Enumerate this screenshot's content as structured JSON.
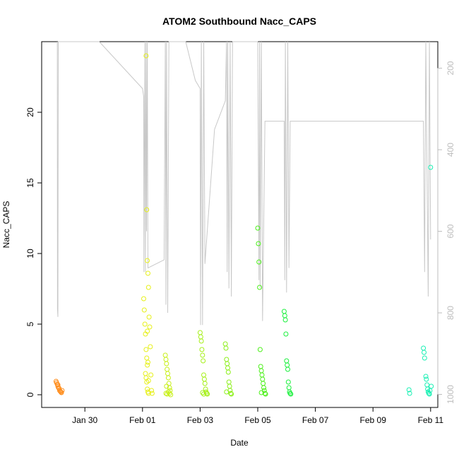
{
  "chart_data": {
    "type": "scatter",
    "title": "ATOM2 Southbound Nacc_CAPS",
    "xlabel": "Date",
    "ylabel": "Nacc_CAPS",
    "x_unit": "day of 2016",
    "xlim": [
      "Jan 28 12:00",
      "Feb 11 06:00"
    ],
    "ylim": [
      -0.9,
      25
    ],
    "y_ticks": [
      0,
      5,
      10,
      15,
      20
    ],
    "x_ticks": [
      {
        "date": "Jan 30",
        "label": "Jan 30"
      },
      {
        "date": "Feb 01",
        "label": "Feb 01"
      },
      {
        "date": "Feb 03",
        "label": "Feb 03"
      },
      {
        "date": "Feb 05",
        "label": "Feb 05"
      },
      {
        "date": "Feb 07",
        "label": "Feb 07"
      },
      {
        "date": "Feb 09",
        "label": "Feb 09"
      },
      {
        "date": "Feb 11",
        "label": "Feb 11"
      }
    ],
    "secondary_axis": {
      "position": "right",
      "ticks": [
        200,
        400,
        600,
        800,
        1000
      ],
      "range_top_to_bottom": [
        135,
        1032
      ],
      "color": "#bdbdbd",
      "description": "pressure (hPa), increasing downward"
    },
    "grid": false,
    "legend": "none",
    "marker": "open-circle",
    "color_by_time": true,
    "series": [
      {
        "color": "#ff8c1a",
        "points": [
          [
            "Jan 29 00:00",
            0.95
          ],
          [
            "Jan 29 00:30",
            0.85
          ],
          [
            "Jan 29 01:00",
            0.75
          ],
          [
            "Jan 29 01:30",
            0.6
          ],
          [
            "Jan 29 02:00",
            0.5
          ],
          [
            "Jan 29 02:30",
            0.45
          ],
          [
            "Jan 29 03:00",
            0.3
          ],
          [
            "Jan 29 03:30",
            0.25
          ],
          [
            "Jan 29 04:00",
            0.2
          ],
          [
            "Jan 29 04:30",
            0.15
          ],
          [
            "Jan 29 05:00",
            0.3
          ],
          [
            "Jan 29 01:30",
            0.7
          ]
        ]
      },
      {
        "color": "#e6f01a",
        "points": [
          [
            "Feb 01 01:00",
            6.8
          ],
          [
            "Feb 01 01:30",
            6.0
          ],
          [
            "Feb 01 02:00",
            5.0
          ],
          [
            "Feb 01 02:30",
            4.3
          ],
          [
            "Feb 01 03:00",
            3.2
          ],
          [
            "Feb 01 03:30",
            2.6
          ],
          [
            "Feb 01 04:00",
            2.1
          ],
          [
            "Feb 01 02:30",
            1.5
          ],
          [
            "Feb 01 03:00",
            1.2
          ],
          [
            "Feb 01 03:30",
            0.9
          ],
          [
            "Feb 01 04:00",
            0.4
          ],
          [
            "Feb 01 04:30",
            0.2
          ],
          [
            "Feb 01 05:00",
            0.1
          ],
          [
            "Feb 01 03:00",
            24.0
          ],
          [
            "Feb 01 03:30",
            13.1
          ],
          [
            "Feb 01 04:00",
            9.5
          ],
          [
            "Feb 01 04:30",
            8.6
          ],
          [
            "Feb 01 05:00",
            7.6
          ],
          [
            "Feb 01 05:30",
            5.5
          ],
          [
            "Feb 01 06:00",
            4.8
          ],
          [
            "Feb 01 06:30",
            3.4
          ],
          [
            "Feb 01 07:00",
            1.4
          ],
          [
            "Feb 01 07:30",
            0.3
          ],
          [
            "Feb 01 08:00",
            0.1
          ],
          [
            "Feb 01 04:00",
            4.5
          ],
          [
            "Feb 01 04:30",
            2.3
          ],
          [
            "Feb 01 05:00",
            1.0
          ]
        ]
      },
      {
        "color": "#c8f01a",
        "points": [
          [
            "Feb 01 19:00",
            2.8
          ],
          [
            "Feb 01 19:30",
            2.5
          ],
          [
            "Feb 01 20:00",
            2.2
          ],
          [
            "Feb 01 20:30",
            1.8
          ],
          [
            "Feb 01 21:00",
            1.5
          ],
          [
            "Feb 01 21:30",
            1.2
          ],
          [
            "Feb 01 22:00",
            0.8
          ],
          [
            "Feb 01 22:30",
            0.5
          ],
          [
            "Feb 01 23:00",
            0.3
          ],
          [
            "Feb 01 19:30",
            0.1
          ],
          [
            "Feb 01 20:30",
            0.05
          ],
          [
            "Feb 01 21:30",
            0.2
          ],
          [
            "Feb 01 22:30",
            0.1
          ],
          [
            "Feb 01 23:30",
            0.0
          ],
          [
            "Feb 01 20:00",
            0.6
          ]
        ]
      },
      {
        "color": "#a6f01a",
        "points": [
          [
            "Feb 03 00:00",
            4.4
          ],
          [
            "Feb 03 00:30",
            4.1
          ],
          [
            "Feb 03 01:00",
            3.8
          ],
          [
            "Feb 03 01:30",
            3.2
          ],
          [
            "Feb 03 02:00",
            2.8
          ],
          [
            "Feb 03 02:30",
            2.4
          ],
          [
            "Feb 03 03:00",
            1.4
          ],
          [
            "Feb 03 03:30",
            1.1
          ],
          [
            "Feb 03 04:00",
            0.8
          ],
          [
            "Feb 03 04:30",
            0.4
          ],
          [
            "Feb 03 05:00",
            0.2
          ],
          [
            "Feb 03 05:30",
            0.1
          ],
          [
            "Feb 03 06:00",
            0.05
          ],
          [
            "Feb 03 02:00",
            0.15
          ],
          [
            "Feb 03 03:00",
            0.05
          ]
        ]
      },
      {
        "color": "#8cf01a",
        "points": [
          [
            "Feb 03 21:00",
            3.6
          ],
          [
            "Feb 03 21:30",
            3.3
          ],
          [
            "Feb 03 22:00",
            2.5
          ],
          [
            "Feb 03 22:30",
            2.2
          ],
          [
            "Feb 03 23:00",
            1.9
          ],
          [
            "Feb 03 23:30",
            1.6
          ],
          [
            "Feb 04 00:00",
            0.9
          ],
          [
            "Feb 04 00:30",
            0.6
          ],
          [
            "Feb 04 01:00",
            0.3
          ],
          [
            "Feb 04 01:30",
            0.1
          ],
          [
            "Feb 04 02:00",
            0.05
          ],
          [
            "Feb 03 22:00",
            0.2
          ]
        ]
      },
      {
        "color": "#4cf01a",
        "points": [
          [
            "Feb 05 00:00",
            11.8
          ],
          [
            "Feb 05 00:30",
            10.7
          ],
          [
            "Feb 05 01:00",
            9.4
          ],
          [
            "Feb 05 01:30",
            7.6
          ],
          [
            "Feb 05 02:00",
            3.2
          ],
          [
            "Feb 05 02:30",
            2.0
          ],
          [
            "Feb 05 03:00",
            1.7
          ],
          [
            "Feb 05 03:30",
            1.4
          ],
          [
            "Feb 05 04:00",
            1.1
          ],
          [
            "Feb 05 04:30",
            0.8
          ],
          [
            "Feb 05 05:00",
            0.5
          ],
          [
            "Feb 05 05:30",
            0.3
          ],
          [
            "Feb 05 06:00",
            0.1
          ],
          [
            "Feb 05 06:30",
            0.05
          ],
          [
            "Feb 05 03:00",
            0.15
          ]
        ]
      },
      {
        "color": "#1af03c",
        "points": [
          [
            "Feb 05 22:00",
            5.9
          ],
          [
            "Feb 05 22:30",
            5.6
          ],
          [
            "Feb 05 23:00",
            5.3
          ],
          [
            "Feb 05 23:30",
            4.3
          ],
          [
            "Feb 06 00:00",
            2.4
          ],
          [
            "Feb 06 00:30",
            2.1
          ],
          [
            "Feb 06 01:00",
            1.8
          ],
          [
            "Feb 06 01:30",
            0.9
          ],
          [
            "Feb 06 02:00",
            0.5
          ],
          [
            "Feb 06 02:30",
            0.2
          ],
          [
            "Feb 06 03:00",
            0.1
          ],
          [
            "Feb 06 03:30",
            0.05
          ]
        ]
      },
      {
        "color": "#1af0b4",
        "points": [
          [
            "Feb 10 06:00",
            0.35
          ],
          [
            "Feb 10 06:30",
            0.1
          ],
          [
            "Feb 10 18:00",
            3.3
          ],
          [
            "Feb 10 18:30",
            3.0
          ],
          [
            "Feb 10 19:00",
            2.6
          ],
          [
            "Feb 10 20:00",
            1.3
          ],
          [
            "Feb 10 20:30",
            1.1
          ],
          [
            "Feb 10 21:00",
            0.7
          ],
          [
            "Feb 10 21:30",
            0.4
          ],
          [
            "Feb 10 22:00",
            0.2
          ],
          [
            "Feb 10 22:30",
            0.1
          ],
          [
            "Feb 10 23:00",
            0.05
          ],
          [
            "Feb 10 23:30",
            0.3
          ],
          [
            "Feb 11 00:00",
            16.1
          ],
          [
            "Feb 11 00:30",
            0.6
          ]
        ]
      }
    ],
    "secondary_line": {
      "color": "#c8c8c8",
      "unit": "hPa",
      "points": [
        [
          "Jan 29 01:00",
          135
        ],
        [
          "Jan 29 01:10",
          790
        ],
        [
          "Jan 29 01:30",
          810
        ],
        [
          "Jan 29 01:50",
          135
        ],
        [
          "Jan 30 12:00",
          135
        ],
        [
          "Feb 01 00:00",
          250
        ],
        [
          "Feb 01 01:00",
          270
        ],
        [
          "Feb 01 01:10",
          700
        ],
        [
          "Feb 01 02:00",
          135
        ],
        [
          "Feb 01 02:30",
          700
        ],
        [
          "Feb 01 03:00",
          135
        ],
        [
          "Feb 01 03:20",
          600
        ],
        [
          "Feb 01 04:00",
          135
        ],
        [
          "Feb 01 04:30",
          690
        ],
        [
          "Feb 01 18:00",
          670
        ],
        [
          "Feb 01 19:00",
          135
        ],
        [
          "Feb 01 19:30",
          780
        ],
        [
          "Feb 01 20:00",
          135
        ],
        [
          "Feb 01 21:00",
          800
        ],
        [
          "Feb 01 22:00",
          135
        ],
        [
          "Feb 02 12:00",
          135
        ],
        [
          "Feb 02 20:00",
          230
        ],
        [
          "Feb 03 00:00",
          250
        ],
        [
          "Feb 03 00:20",
          830
        ],
        [
          "Feb 03 01:00",
          135
        ],
        [
          "Feb 03 02:00",
          830
        ],
        [
          "Feb 03 03:00",
          135
        ],
        [
          "Feb 03 04:00",
          680
        ],
        [
          "Feb 03 12:00",
          350
        ],
        [
          "Feb 03 21:00",
          280
        ],
        [
          "Feb 03 22:00",
          135
        ],
        [
          "Feb 03 22:30",
          700
        ],
        [
          "Feb 03 23:00",
          135
        ],
        [
          "Feb 04 00:00",
          740
        ],
        [
          "Feb 04 01:00",
          135
        ],
        [
          "Feb 04 02:00",
          760
        ],
        [
          "Feb 04 03:00",
          135
        ],
        [
          "Feb 05 00:00",
          135
        ],
        [
          "Feb 05 01:00",
          720
        ],
        [
          "Feb 05 01:30",
          135
        ],
        [
          "Feb 05 02:00",
          740
        ],
        [
          "Feb 05 03:00",
          135
        ],
        [
          "Feb 05 04:00",
          820
        ],
        [
          "Feb 05 06:00",
          330
        ],
        [
          "Feb 05 12:00",
          330
        ],
        [
          "Feb 05 22:00",
          330
        ],
        [
          "Feb 05 22:30",
          720
        ],
        [
          "Feb 05 23:00",
          135
        ],
        [
          "Feb 06 00:00",
          750
        ],
        [
          "Feb 06 01:00",
          135
        ],
        [
          "Feb 06 02:00",
          690
        ],
        [
          "Feb 06 03:00",
          330
        ],
        [
          "Feb 10 18:00",
          330
        ],
        [
          "Feb 10 19:00",
          700
        ],
        [
          "Feb 10 20:00",
          135
        ],
        [
          "Feb 10 22:00",
          760
        ],
        [
          "Feb 10 23:00",
          135
        ],
        [
          "Feb 11 00:00",
          620
        ]
      ]
    }
  }
}
